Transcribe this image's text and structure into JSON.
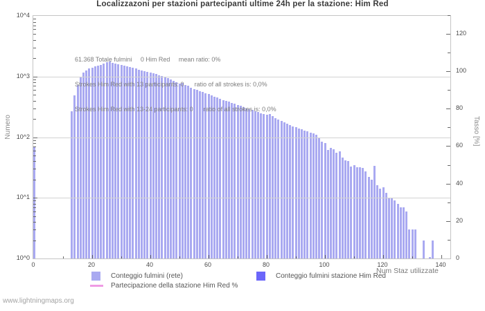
{
  "title": "Localizzazoni per stazioni partecipanti ultime 24h per la stazione: Him Red",
  "annotations": {
    "line1": "61.368 Totale fulmini     0 Him Red     mean ratio: 0%",
    "line2": "Strokes Him Red with 13 participants: 0      ratio of all strokes is: 0,0%",
    "line3": "Strokes Him Red with 13-24 participants: 0      ratio of all strokes is: 0,0%"
  },
  "footer": "www.lightningmaps.org",
  "legend": {
    "item1": "Conteggio fulmini (rete)",
    "item2": "Conteggio fulmini stazione Him Red",
    "item3": "Partecipazione della stazione Him Red %"
  },
  "colors": {
    "network_bars": "#a9a9f1",
    "station_bars": "#6b66fa",
    "participation_line": "#ef9be4",
    "grid": "#d2d2d2",
    "border": "#c4c4c4"
  },
  "chart_data": {
    "type": "bar",
    "title": "Localizzazoni per stazioni partecipanti ultime 24h per la stazione: Him Red",
    "xlabel": "Num Staz utilizzate",
    "ylabel_left": "Numero",
    "ylabel_right": "Tasso [%]",
    "y_left_scale": "log10",
    "y_left_range_exp": [
      0,
      4
    ],
    "y_left_tick_labels": [
      "10^0",
      "10^1",
      "10^2",
      "10^3",
      "10^4"
    ],
    "y_right_ticks": [
      0,
      20,
      40,
      60,
      80,
      100,
      120
    ],
    "x_ticks": [
      0,
      20,
      40,
      60,
      80,
      100,
      120,
      140
    ],
    "x_range": [
      0,
      143
    ],
    "grid": "horizontal-decades",
    "legend_position": "below",
    "series": [
      {
        "name": "Conteggio fulmini (rete)",
        "color": "#a9a9f1",
        "x_is_station_count_index": true,
        "values": [
          70,
          0,
          0,
          0,
          0,
          0,
          0,
          0,
          0,
          0,
          0,
          0,
          0,
          270,
          490,
          720,
          990,
          1170,
          1260,
          1370,
          1400,
          1480,
          1520,
          1560,
          1650,
          1740,
          1780,
          1700,
          1650,
          1610,
          1560,
          1520,
          1460,
          1420,
          1380,
          1350,
          1300,
          1260,
          1230,
          1200,
          1170,
          1120,
          1090,
          1050,
          1010,
          975,
          940,
          905,
          840,
          800,
          770,
          780,
          720,
          700,
          650,
          620,
          600,
          580,
          560,
          530,
          510,
          490,
          470,
          450,
          430,
          410,
          400,
          390,
          370,
          355,
          340,
          330,
          315,
          300,
          290,
          280,
          270,
          260,
          250,
          240,
          235,
          240,
          220,
          205,
          195,
          185,
          175,
          165,
          160,
          150,
          145,
          140,
          135,
          130,
          125,
          120,
          115,
          110,
          100,
          85,
          80,
          62,
          66,
          63,
          56,
          58,
          46,
          42,
          40,
          33,
          35,
          32,
          32,
          31,
          27,
          22,
          20,
          34,
          16,
          14,
          15,
          12,
          10,
          10,
          9,
          8,
          7,
          7,
          6,
          3,
          3,
          3,
          0,
          0,
          2,
          0,
          1,
          2,
          0,
          0,
          0
        ]
      },
      {
        "name": "Conteggio fulmini stazione Him Red",
        "color": "#6b66fa",
        "all_values": 0
      },
      {
        "name": "Partecipazione della stazione Him Red %",
        "color": "#ef9be4",
        "all_values_percent": 0
      }
    ],
    "stats": {
      "total_strokes": "61.368",
      "station_strokes": 0,
      "mean_ratio_percent": "0%"
    }
  }
}
